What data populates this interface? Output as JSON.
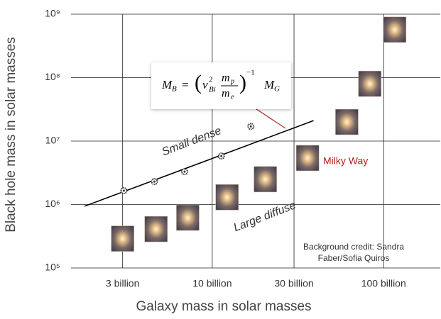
{
  "chart_data": {
    "type": "scatter",
    "x_label": "Galaxy mass in solar masses",
    "y_label": "Black hole mass in solar masses",
    "xlog": true,
    "ylog": true,
    "grid": true,
    "xlim": [
      1500000000,
      214000000000
    ],
    "ylim": [
      100000,
      1000000000
    ],
    "xticks": [
      {
        "value": 3000000000,
        "label": "3 billion"
      },
      {
        "value": 10000000000,
        "label": "10 billion"
      },
      {
        "value": 30000000000,
        "label": "30 billion"
      },
      {
        "value": 100000000000,
        "label": "100 billion"
      }
    ],
    "yticks": [
      {
        "value": 100000,
        "label": "10⁵"
      },
      {
        "value": 1000000,
        "label": "10⁶"
      },
      {
        "value": 10000000,
        "label": "10⁷"
      },
      {
        "value": 100000000,
        "label": "10⁸"
      },
      {
        "value": 1000000000,
        "label": "10⁹"
      }
    ],
    "series": [
      {
        "marker": "line",
        "color": "#000000",
        "x": [
          1800000000,
          39000000000
        ],
        "values": [
          940000,
          21000000
        ]
      },
      {
        "marker": "dot",
        "color": "#333333",
        "x": [
          3050000000,
          4600000000,
          6900000000,
          11300000000,
          16800000000
        ],
        "values": [
          1650000,
          2300000,
          3300000,
          5800000,
          17000000
        ]
      },
      {
        "marker": "galaxy",
        "color": "#c9a98a",
        "x": [
          3000000000,
          4700000000,
          7200000000,
          12200000000,
          20400000000,
          36000000000,
          61000000000,
          83000000000,
          116000000000
        ],
        "values": [
          290000,
          410000,
          620000,
          1300000,
          2500000,
          5400000,
          20000000,
          80000000,
          570000000
        ]
      }
    ],
    "annotations": {
      "small": "Small dense",
      "large": "Large diffuse",
      "milky": "Milky Way",
      "credit": [
        "Background credit: Sandra",
        "Faber/Sofia Quiros"
      ]
    },
    "formula": [
      "M",
      "B",
      "=",
      "(",
      "ν",
      "2",
      "Bi",
      "m",
      "p",
      "m",
      "e",
      ")",
      "−1",
      "M",
      "G"
    ]
  }
}
